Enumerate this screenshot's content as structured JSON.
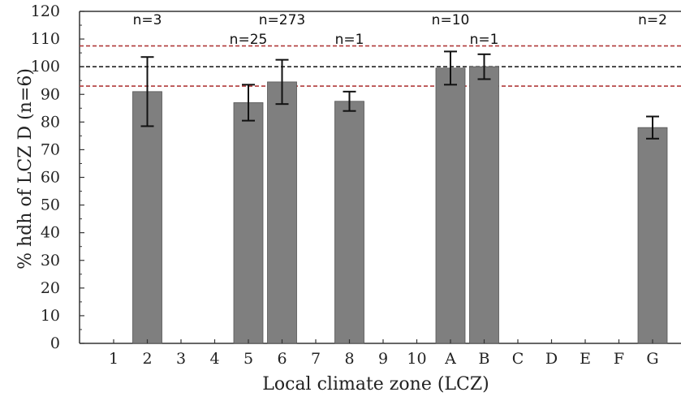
{
  "chart_data": {
    "type": "bar",
    "xlabel": "Local climate zone (LCZ)",
    "ylabel": "% hdh of LCZ D (n=6)",
    "ylim": [
      0,
      120
    ],
    "yticks": [
      "0",
      "10",
      "20",
      "30",
      "40",
      "50",
      "60",
      "70",
      "80",
      "90",
      "100",
      "110",
      "120"
    ],
    "categories": [
      "1",
      "2",
      "3",
      "4",
      "5",
      "6",
      "7",
      "8",
      "9",
      "10",
      "A",
      "B",
      "C",
      "D",
      "E",
      "F",
      "G"
    ],
    "values": [
      null,
      91,
      null,
      null,
      87,
      94.5,
      null,
      87.5,
      null,
      null,
      99.5,
      100,
      null,
      null,
      null,
      null,
      78
    ],
    "errors": [
      null,
      12.5,
      null,
      null,
      6.5,
      8,
      null,
      3.5,
      null,
      null,
      6,
      4.5,
      null,
      null,
      null,
      null,
      4
    ],
    "n_labels": [
      {
        "category": "2",
        "text": "n=3",
        "row": "upper"
      },
      {
        "category": "5",
        "text": "n=25",
        "row": "lower"
      },
      {
        "category": "6",
        "text": "n=273",
        "row": "upper"
      },
      {
        "category": "8",
        "text": "n=1",
        "row": "lower"
      },
      {
        "category": "A",
        "text": "n=10",
        "row": "upper"
      },
      {
        "category": "B",
        "text": "n=1",
        "row": "lower"
      },
      {
        "category": "G",
        "text": "n=2",
        "row": "upper"
      }
    ],
    "reference_lines": [
      {
        "y": 100,
        "style": "dashed",
        "color": "#222222"
      },
      {
        "y": 107.5,
        "style": "dashed",
        "color": "#b03a3a"
      },
      {
        "y": 93,
        "style": "dashed",
        "color": "#b03a3a"
      }
    ],
    "bar_color": "#7f7f7f",
    "grid": false
  }
}
